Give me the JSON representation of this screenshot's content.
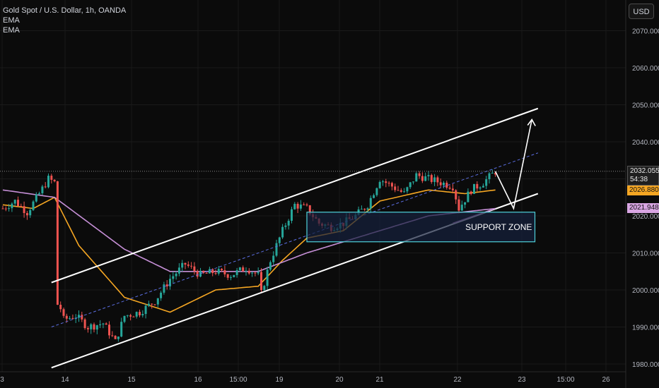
{
  "legend": {
    "title": "Gold Spot / U.S. Dollar, 1h, OANDA",
    "ema1": "EMA",
    "ema2": "EMA"
  },
  "currency_button": "USD",
  "price_tags": {
    "current": "2032.055",
    "countdown": "54:38",
    "ema_fast": "2026.880",
    "ema_slow": "2021.948"
  },
  "annotation": {
    "support_zone_label": "SUPPORT ZONE"
  },
  "colors": {
    "background": "#0b0b0b",
    "up": "#26a69a",
    "down": "#ef5350",
    "ema_fast": "#f5a623",
    "ema_slow": "#c58fd6",
    "channel": "#ffffff",
    "midline": "#5b6ee1",
    "zone_border": "#4fd1d9",
    "zone_fill": "#16213d"
  },
  "chart_data": {
    "type": "candlestick",
    "symbol": "Gold Spot / U.S. Dollar",
    "timeframe": "1h",
    "source": "OANDA",
    "x_ticks": [
      "3",
      "14",
      "15",
      "16",
      "15:00",
      "19",
      "20",
      "21",
      "22",
      "23",
      "15:00",
      "26"
    ],
    "y_ticks": [
      1980,
      1990,
      2000,
      2010,
      2020,
      2030,
      2040,
      2050,
      2060,
      2070
    ],
    "y_tick_labels": [
      "1980.000",
      "1990.000",
      "2000.000",
      "2010.000",
      "2020.000",
      "2030.000",
      "2040.000",
      "2050.000",
      "2060.000",
      "2070.000"
    ],
    "ylim": [
      1977,
      2076
    ],
    "last_price": 2032.055,
    "series": [
      {
        "name": "price",
        "anchors": [
          [
            0,
            2022
          ],
          [
            4,
            2024
          ],
          [
            8,
            2021
          ],
          [
            12,
            2026
          ],
          [
            15,
            2030
          ],
          [
            17,
            2029
          ],
          [
            18,
            1998
          ],
          [
            20,
            1992
          ],
          [
            24,
            1993
          ],
          [
            28,
            1990
          ],
          [
            33,
            1991
          ],
          [
            37,
            1986
          ],
          [
            40,
            1993
          ],
          [
            45,
            1994
          ],
          [
            50,
            1997
          ],
          [
            55,
            2003
          ],
          [
            60,
            2007
          ],
          [
            65,
            2004
          ],
          [
            70,
            2005
          ],
          [
            75,
            2004
          ],
          [
            80,
            2006
          ],
          [
            84,
            2004
          ],
          [
            85,
            1999
          ],
          [
            88,
            2008
          ],
          [
            92,
            2016
          ],
          [
            96,
            2023
          ],
          [
            100,
            2022
          ],
          [
            104,
            2018
          ],
          [
            108,
            2017
          ],
          [
            112,
            2018
          ],
          [
            116,
            2020
          ],
          [
            120,
            2023
          ],
          [
            124,
            2030
          ],
          [
            128,
            2028
          ],
          [
            132,
            2026
          ],
          [
            136,
            2031
          ],
          [
            140,
            2030
          ],
          [
            144,
            2029
          ],
          [
            148,
            2028
          ],
          [
            150,
            2022
          ],
          [
            154,
            2027
          ],
          [
            158,
            2029
          ],
          [
            162,
            2032
          ]
        ]
      },
      {
        "name": "EMA",
        "anchors": [
          [
            0,
            2023
          ],
          [
            10,
            2022
          ],
          [
            17,
            2025
          ],
          [
            25,
            2012
          ],
          [
            40,
            1998
          ],
          [
            55,
            1994
          ],
          [
            70,
            2000
          ],
          [
            84,
            2001
          ],
          [
            92,
            2008
          ],
          [
            100,
            2014
          ],
          [
            112,
            2016
          ],
          [
            124,
            2024
          ],
          [
            140,
            2027
          ],
          [
            152,
            2026
          ],
          [
            162,
            2027
          ]
        ]
      },
      {
        "name": "EMA",
        "anchors": [
          [
            0,
            2027
          ],
          [
            17,
            2025
          ],
          [
            40,
            2011
          ],
          [
            55,
            2005
          ],
          [
            84,
            2005
          ],
          [
            100,
            2010
          ],
          [
            124,
            2016
          ],
          [
            140,
            2020
          ],
          [
            162,
            2022
          ]
        ]
      }
    ],
    "annotations": {
      "channel_upper": [
        [
          16,
          2002
        ],
        [
          176,
          2049
        ]
      ],
      "channel_lower": [
        [
          16,
          1979
        ],
        [
          176,
          2026
        ]
      ],
      "channel_mid": [
        [
          16,
          1990
        ],
        [
          176,
          2037
        ]
      ],
      "support_zone": {
        "label": "SUPPORT ZONE",
        "x": [
          100,
          175
        ],
        "y": [
          2013,
          2021
        ]
      },
      "projection": [
        [
          162,
          2032
        ],
        [
          168,
          2022
        ],
        [
          174,
          2046
        ]
      ],
      "ema_extension": [
        [
          148,
          2018
        ],
        [
          162,
          2022
        ]
      ]
    }
  }
}
